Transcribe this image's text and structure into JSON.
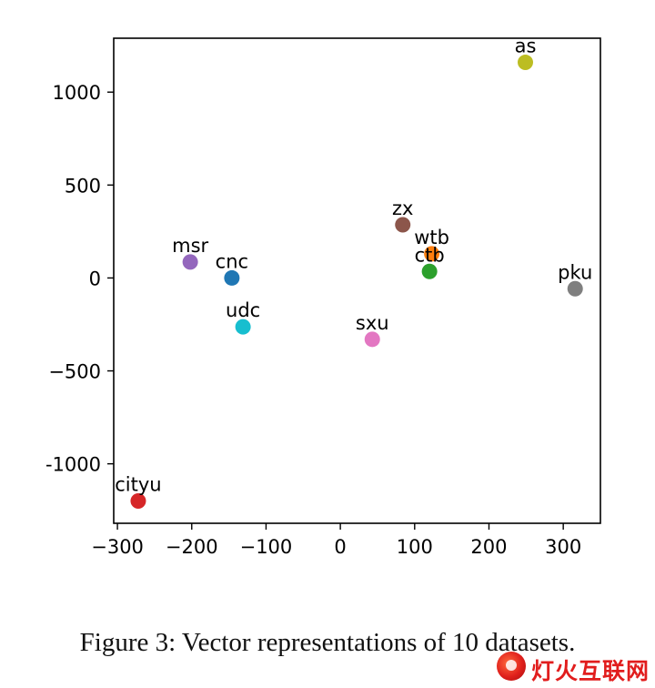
{
  "chart_data": {
    "type": "scatter",
    "title": "",
    "xlabel": "",
    "ylabel": "",
    "xlim": [
      -305,
      350
    ],
    "ylim": [
      -1320,
      1290
    ],
    "xticks": [
      -300,
      -200,
      -100,
      0,
      100,
      200,
      300
    ],
    "yticks": [
      -1000,
      -500,
      0,
      500,
      1000
    ],
    "xtick_labels": [
      "−300",
      "−200",
      "−100",
      "0",
      "100",
      "200",
      "300"
    ],
    "ytick_labels": [
      "-1000",
      "−500",
      "0",
      "500",
      "1000"
    ],
    "grid": false,
    "points": [
      {
        "label": "as",
        "x": 249,
        "y": 1160,
        "color": "#bcbd22"
      },
      {
        "label": "zx",
        "x": 84,
        "y": 286,
        "color": "#8c564b"
      },
      {
        "label": "wtb",
        "x": 123,
        "y": 130,
        "color": "#ff7f0e"
      },
      {
        "label": "ctb",
        "x": 120,
        "y": 35,
        "color": "#2ca02c"
      },
      {
        "label": "pku",
        "x": 316,
        "y": -58,
        "color": "#7f7f7f"
      },
      {
        "label": "msr",
        "x": -202,
        "y": 86,
        "color": "#9467bd"
      },
      {
        "label": "cnc",
        "x": -146,
        "y": 0,
        "color": "#1f77b4"
      },
      {
        "label": "udc",
        "x": -131,
        "y": -263,
        "color": "#17becf"
      },
      {
        "label": "sxu",
        "x": 43,
        "y": -330,
        "color": "#e377c2"
      },
      {
        "label": "cityu",
        "x": -272,
        "y": -1200,
        "color": "#d62728"
      }
    ]
  },
  "caption": "Figure 3: Vector representations of 10 datasets.",
  "watermark": {
    "text": "灯火互联网"
  }
}
